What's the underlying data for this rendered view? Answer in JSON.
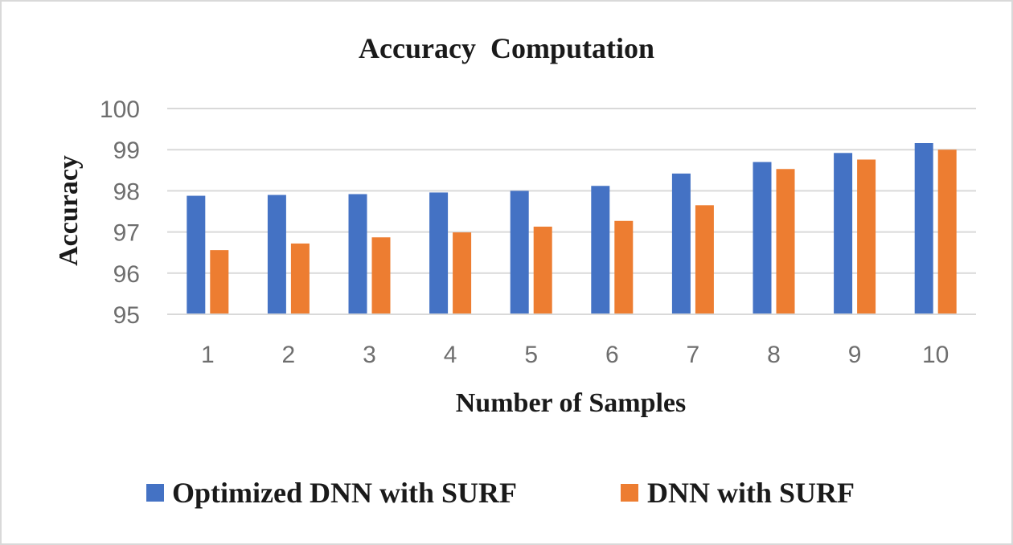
{
  "chart_data": {
    "type": "bar",
    "title": "Accuracy  Computation",
    "xlabel": "Number of Samples",
    "ylabel": "Accuracy",
    "categories": [
      "1",
      "2",
      "3",
      "4",
      "5",
      "6",
      "7",
      "8",
      "9",
      "10"
    ],
    "ylim": [
      95,
      100
    ],
    "yticks": [
      "95",
      "96",
      "97",
      "98",
      "99",
      "100"
    ],
    "grid": true,
    "legend_position": "bottom",
    "series": [
      {
        "name": "Optimized DNN with SURF",
        "color": "#4472c4",
        "values": [
          97.88,
          97.9,
          97.92,
          97.96,
          98.0,
          98.12,
          98.42,
          98.7,
          98.92,
          99.16
        ]
      },
      {
        "name": "DNN with SURF",
        "color": "#ed7d31",
        "values": [
          96.56,
          96.72,
          96.87,
          96.99,
          97.13,
          97.27,
          97.65,
          98.53,
          98.76,
          99.0
        ]
      }
    ]
  }
}
